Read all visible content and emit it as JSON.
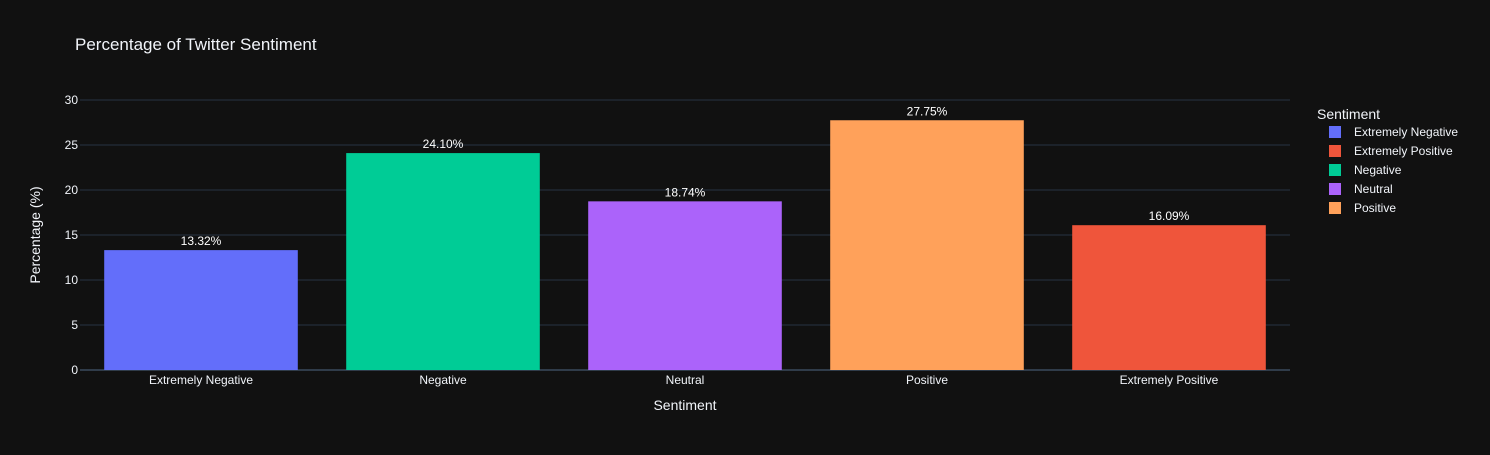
{
  "chart_data": {
    "type": "bar",
    "title": "Percentage of Twitter Sentiment",
    "xlabel": "Sentiment",
    "ylabel": "Percentage (%)",
    "ylim": [
      0,
      30
    ],
    "yticks": [
      0,
      5,
      10,
      15,
      20,
      25,
      30
    ],
    "ytick_labels": [
      "0",
      "5",
      "10",
      "15",
      "20",
      "25",
      "30"
    ],
    "grid": true,
    "categories": [
      "Extremely Negative",
      "Negative",
      "Neutral",
      "Positive",
      "Extremely Positive"
    ],
    "values": [
      13.32,
      24.1,
      18.74,
      27.75,
      16.09
    ],
    "data_labels": [
      "13.32%",
      "24.10%",
      "18.74%",
      "27.75%",
      "16.09%"
    ],
    "colors": [
      "#636efa",
      "#00cc96",
      "#ab63fa",
      "#ffa15a",
      "#ef553b"
    ],
    "legend": {
      "title": "Sentiment",
      "placement": "right",
      "entries": [
        {
          "name": "Extremely Negative",
          "color": "#636efa"
        },
        {
          "name": "Extremely Positive",
          "color": "#ef553b"
        },
        {
          "name": "Negative",
          "color": "#00cc96"
        },
        {
          "name": "Neutral",
          "color": "#ab63fa"
        },
        {
          "name": "Positive",
          "color": "#ffa15a"
        }
      ]
    },
    "background_color": "#111111",
    "grid_color": "#283442",
    "text_color": "#f2f5fa"
  }
}
